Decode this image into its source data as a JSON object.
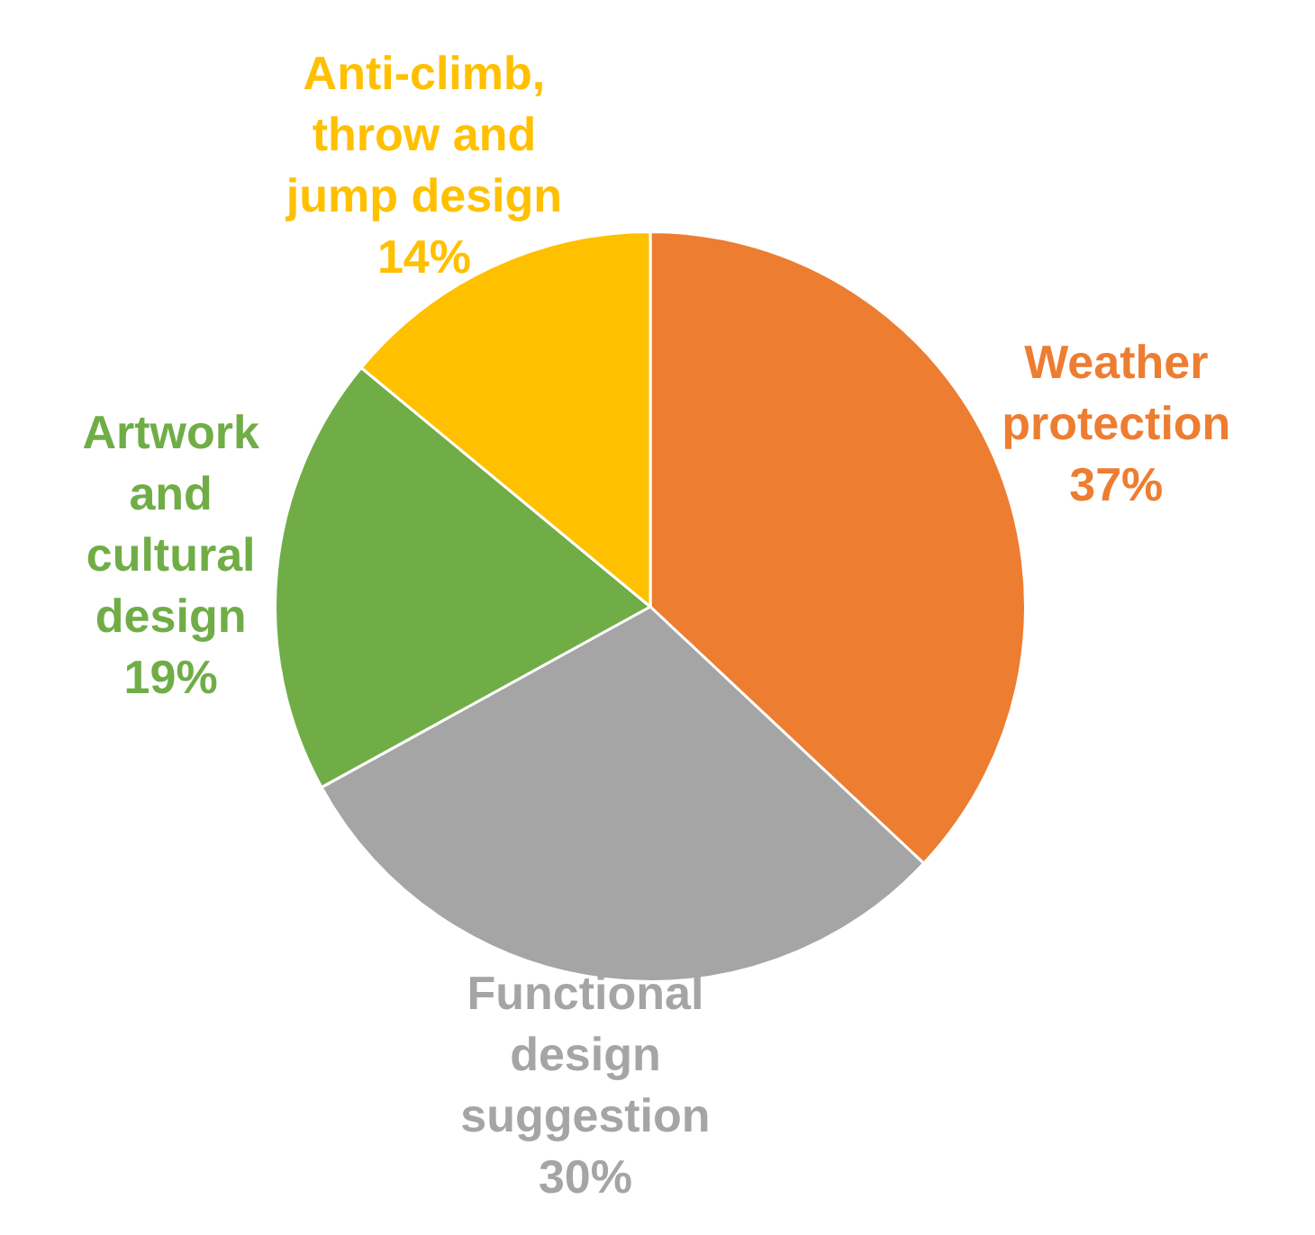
{
  "chart_data": {
    "type": "pie",
    "categories": [
      "Weather\nprotection",
      "Functional\ndesign\nsuggestion",
      "Artwork\nand\ncultural\ndesign",
      "Anti-climb,\nthrow and\njump design"
    ],
    "values": [
      37,
      30,
      19,
      14
    ],
    "value_labels": [
      "37%",
      "30%",
      "19%",
      "14%"
    ],
    "colors": [
      "#ed7d31",
      "#a5a5a5",
      "#70ad47",
      "#ffc000"
    ],
    "legend": false
  }
}
